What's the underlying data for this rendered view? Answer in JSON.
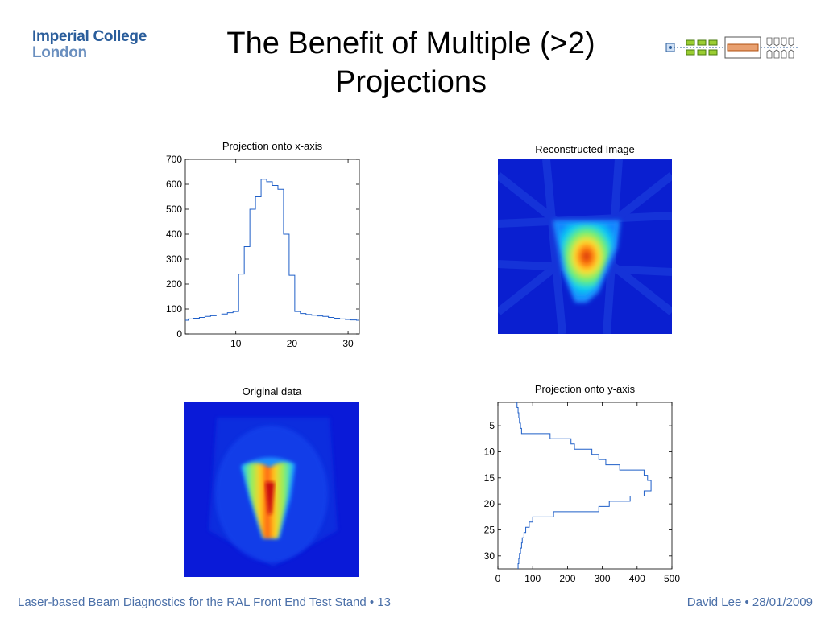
{
  "logo": {
    "line1": "Imperial College",
    "line2": "London"
  },
  "slide": {
    "title": "The Benefit of Multiple (>2) Projections"
  },
  "footer": {
    "left": "Laser-based Beam Diagnostics for the RAL Front End Test Stand • 13",
    "right": "David Lee • 28/01/2009"
  },
  "colors": {
    "footer_text": "#4a6fa8",
    "plot_line": "#1f5fc8",
    "heatmap_background": "#0a1fd0"
  },
  "chart_data": [
    {
      "type": "line",
      "title": "Projection onto x-axis",
      "xlabel": "",
      "ylabel": "",
      "xlim": [
        1,
        32
      ],
      "ylim": [
        0,
        700
      ],
      "x_ticks": [
        10,
        20,
        30
      ],
      "y_ticks": [
        0,
        100,
        200,
        300,
        400,
        500,
        600,
        700
      ],
      "step": true,
      "x": [
        1,
        2,
        3,
        4,
        5,
        6,
        7,
        8,
        9,
        10,
        11,
        12,
        13,
        14,
        15,
        16,
        17,
        18,
        19,
        20,
        21,
        22,
        23,
        24,
        25,
        26,
        27,
        28,
        29,
        30,
        31,
        32
      ],
      "values": [
        55,
        60,
        63,
        66,
        70,
        73,
        76,
        80,
        85,
        90,
        240,
        350,
        500,
        550,
        620,
        610,
        595,
        580,
        400,
        235,
        90,
        82,
        78,
        75,
        72,
        70,
        66,
        63,
        60,
        58,
        56,
        55
      ]
    },
    {
      "type": "heatmap",
      "title": "Reconstructed Image"
    },
    {
      "type": "heatmap",
      "title": "Original data"
    },
    {
      "type": "line",
      "title": "Projection onto y-axis",
      "xlabel": "",
      "ylabel": "",
      "orientation": "horizontal",
      "xlim": [
        0,
        500
      ],
      "ylim": [
        32,
        1
      ],
      "x_ticks": [
        0,
        100,
        200,
        300,
        400,
        500
      ],
      "y_ticks": [
        5,
        10,
        15,
        20,
        25,
        30
      ],
      "step": true,
      "y": [
        1,
        2,
        3,
        4,
        5,
        6,
        7,
        8,
        9,
        10,
        11,
        12,
        13,
        14,
        15,
        16,
        17,
        18,
        19,
        20,
        21,
        22,
        23,
        24,
        25,
        26,
        27,
        28,
        29,
        30,
        31,
        32
      ],
      "values": [
        55,
        58,
        60,
        62,
        65,
        68,
        150,
        210,
        220,
        270,
        290,
        310,
        350,
        420,
        430,
        440,
        440,
        420,
        380,
        320,
        290,
        160,
        100,
        90,
        80,
        75,
        70,
        68,
        65,
        62,
        60,
        58
      ]
    }
  ]
}
